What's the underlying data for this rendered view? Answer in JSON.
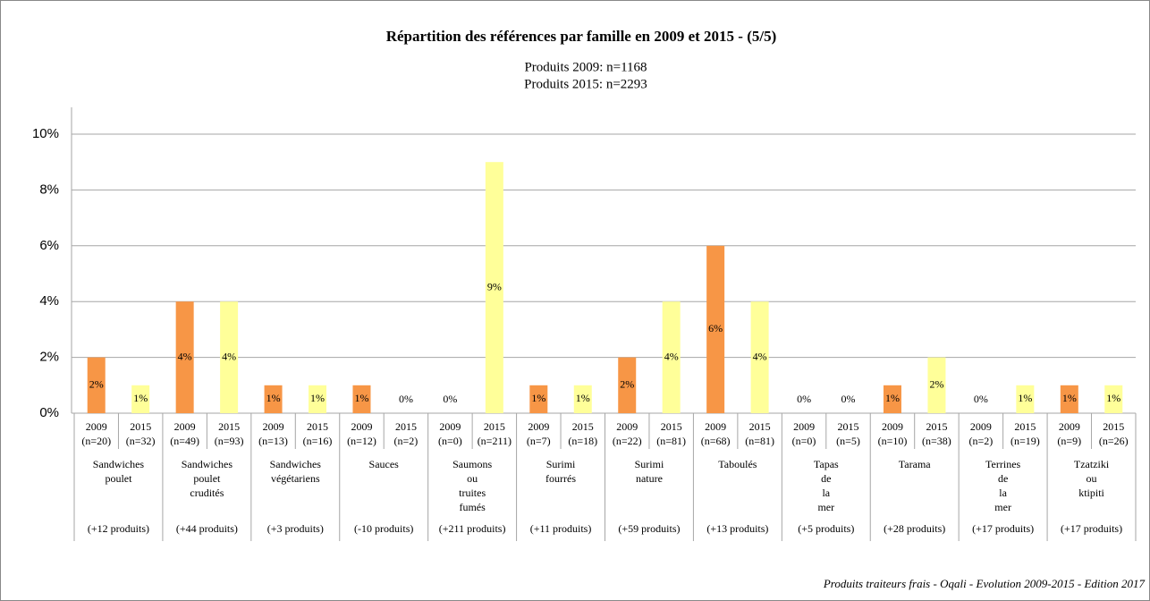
{
  "chart_data": {
    "type": "bar",
    "title": "Répartition des références par famille en 2009 et 2015 - (5/5)",
    "subtitle": [
      "Produits 2009: n=1168",
      "Produits 2015: n=2293"
    ],
    "groups": [
      {
        "name": [
          "Sandwiches",
          "poulet"
        ],
        "change": "(+12 produits)"
      },
      {
        "name": [
          "Sandwiches",
          "poulet",
          "crudités"
        ],
        "change": "(+44 produits)"
      },
      {
        "name": [
          "Sandwiches",
          "végétariens"
        ],
        "change": "(+3 produits)"
      },
      {
        "name": [
          "Sauces"
        ],
        "change": "(-10 produits)"
      },
      {
        "name": [
          "Saumons",
          "ou",
          "truites",
          "fumés"
        ],
        "change": "(+211 produits)"
      },
      {
        "name": [
          "Surimi",
          "fourrés"
        ],
        "change": "(+11 produits)"
      },
      {
        "name": [
          "Surimi",
          "nature"
        ],
        "change": "(+59 produits)"
      },
      {
        "name": [
          "Taboulés"
        ],
        "change": "(+13 produits)"
      },
      {
        "name": [
          "Tapas",
          "de",
          "la",
          "mer"
        ],
        "change": "(+5 produits)"
      },
      {
        "name": [
          "Tarama"
        ],
        "change": "(+28 produits)"
      },
      {
        "name": [
          "Terrines",
          "de",
          "la",
          "mer"
        ],
        "change": "(+17 produits)"
      },
      {
        "name": [
          "Tzatziki",
          "ou",
          "ktipiti"
        ],
        "change": "(+17 produits)"
      }
    ],
    "series": [
      {
        "name": "2009",
        "color": "#f79646",
        "values": [
          2,
          4,
          1,
          1,
          0,
          1,
          2,
          6,
          0,
          1,
          0,
          1
        ],
        "value_labels": [
          "2%",
          "4%",
          "1%",
          "1%",
          "0%",
          "1%",
          "2%",
          "6%",
          "0%",
          "1%",
          "0%",
          "1%"
        ],
        "counts": [
          "(n=20)",
          "(n=49)",
          "(n=13)",
          "(n=12)",
          "(n=0)",
          "(n=7)",
          "(n=22)",
          "(n=68)",
          "(n=0)",
          "(n=10)",
          "(n=2)",
          "(n=9)"
        ]
      },
      {
        "name": "2015",
        "color": "#ffff99",
        "values": [
          1,
          4,
          1,
          0,
          9,
          1,
          4,
          4,
          0,
          2,
          1,
          1
        ],
        "value_labels": [
          "1%",
          "4%",
          "1%",
          "0%",
          "9%",
          "1%",
          "4%",
          "4%",
          "0%",
          "2%",
          "1%",
          "1%"
        ],
        "counts": [
          "(n=32)",
          "(n=93)",
          "(n=16)",
          "(n=2)",
          "(n=211)",
          "(n=18)",
          "(n=81)",
          "(n=81)",
          "(n=5)",
          "(n=38)",
          "(n=19)",
          "(n=26)"
        ]
      }
    ],
    "ylim": [
      0,
      10
    ],
    "yticks": [
      {
        "value": 0,
        "label": "0%"
      },
      {
        "value": 2,
        "label": "2%"
      },
      {
        "value": 4,
        "label": "4%"
      },
      {
        "value": 6,
        "label": "6%"
      },
      {
        "value": 8,
        "label": "8%"
      },
      {
        "value": 10,
        "label": "10%"
      }
    ],
    "grid": true,
    "source": "Produits traiteurs frais - Oqali - Evolution 2009-2015 - Edition 2017"
  }
}
